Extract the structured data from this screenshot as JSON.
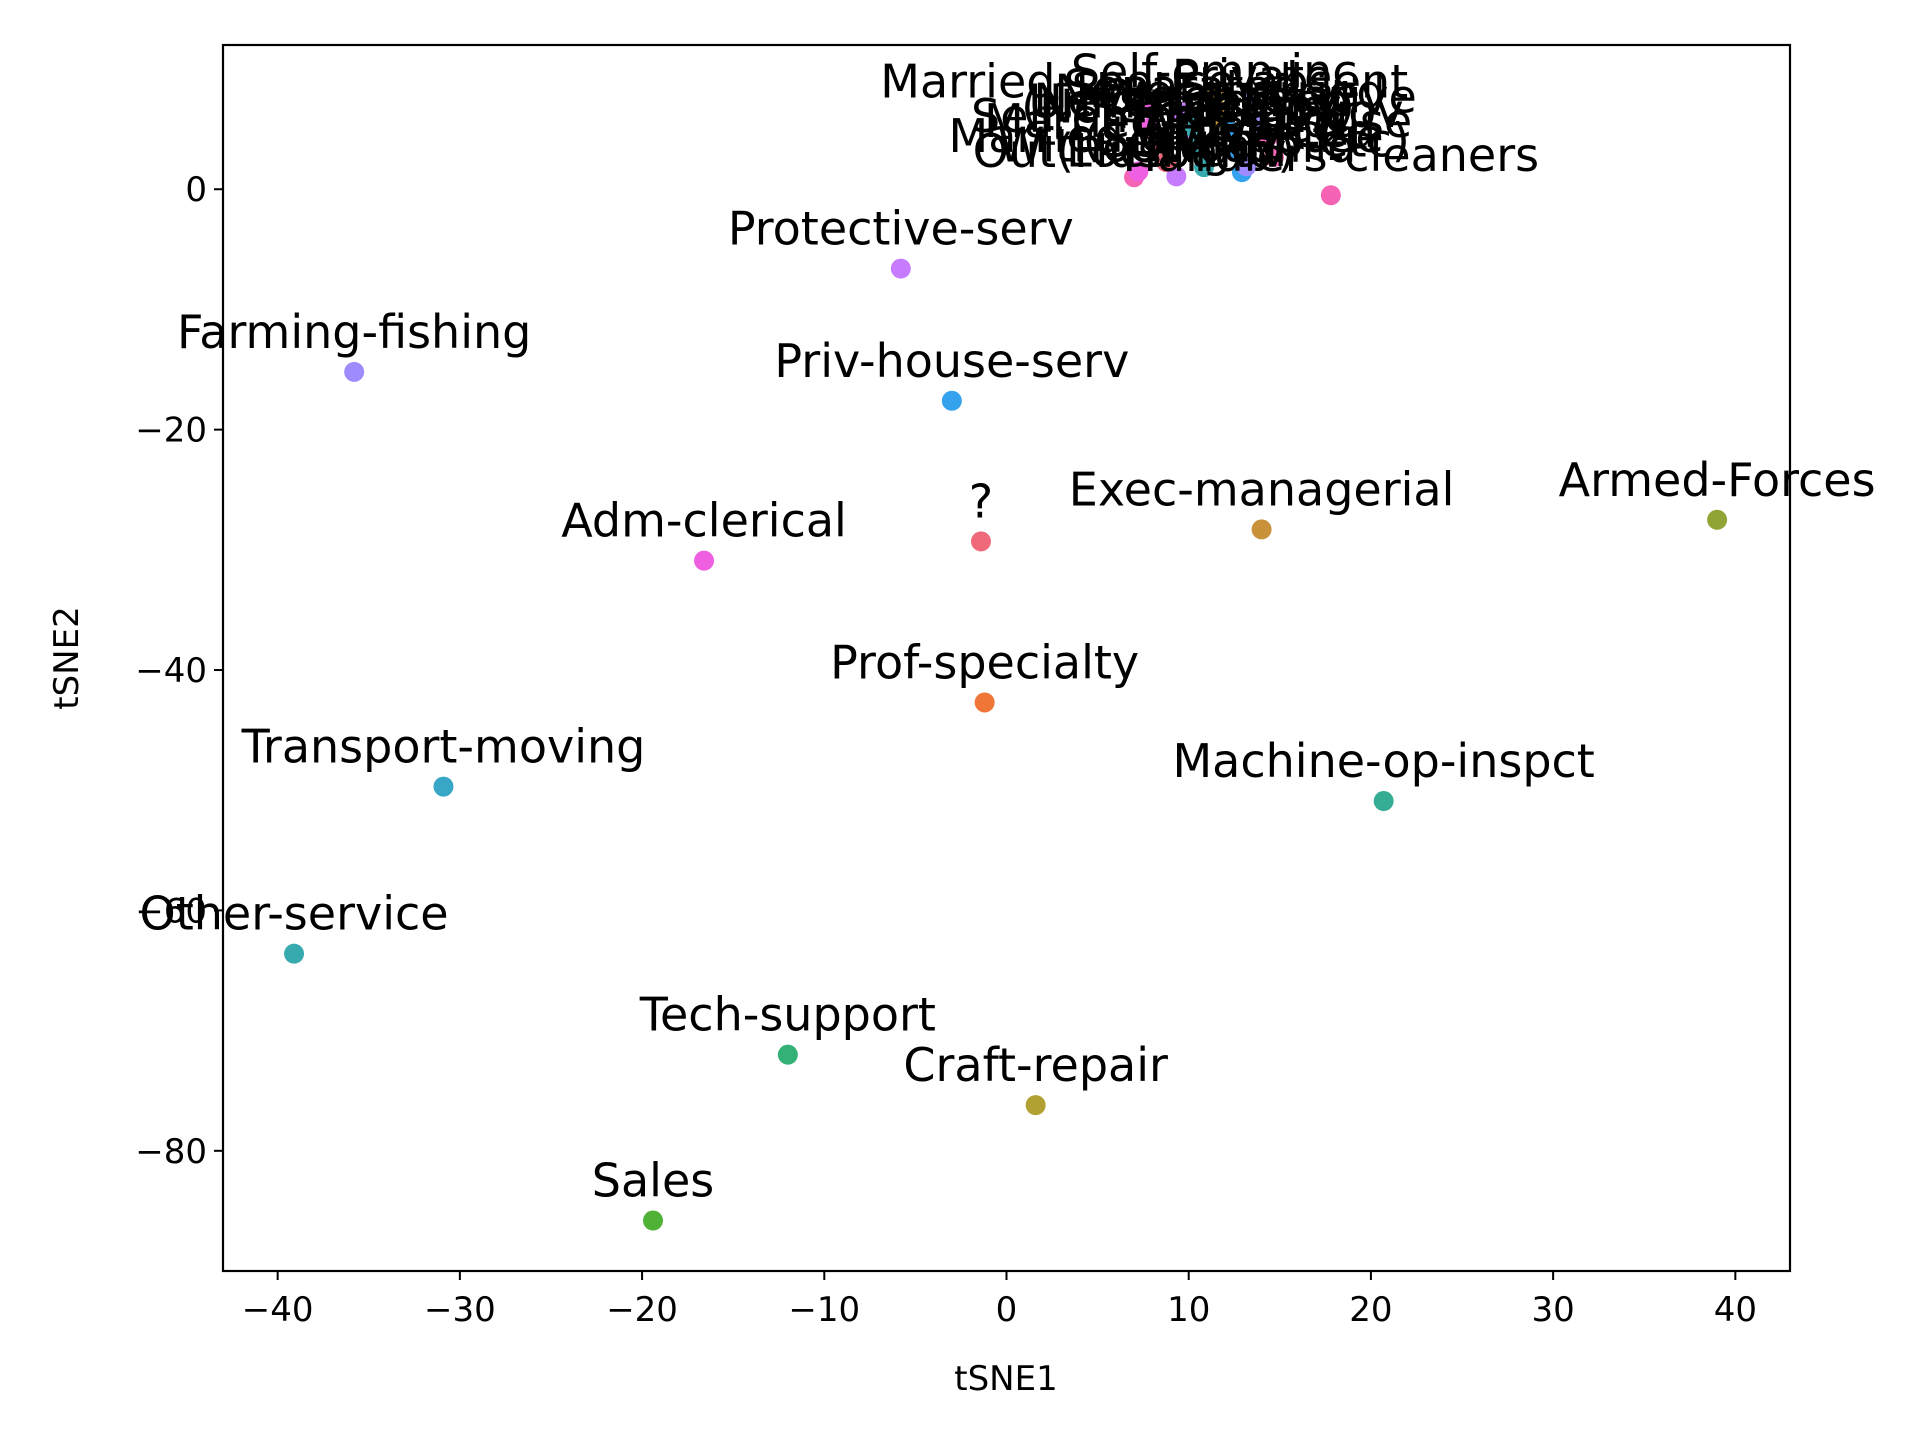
{
  "chart_data": {
    "type": "scatter",
    "title": "",
    "xlabel": "tSNE1",
    "ylabel": "tSNE2",
    "xlim": [
      -43,
      43
    ],
    "ylim": [
      -90,
      12
    ],
    "xticks": [
      -40,
      -30,
      -20,
      -10,
      0,
      10,
      20,
      30,
      40
    ],
    "yticks": [
      -80,
      -60,
      -40,
      -20,
      0
    ],
    "xtick_labels": [
      "−40",
      "−30",
      "−20",
      "−10",
      "0",
      "10",
      "20",
      "30",
      "40"
    ],
    "ytick_labels": [
      "−80",
      "−60",
      "−40",
      "−20",
      "0"
    ],
    "grid": false,
    "legend": "none",
    "points": [
      {
        "label": "Handlers-cleaners",
        "x": 17.8,
        "y": -0.5,
        "color": "#f564b4"
      },
      {
        "label": "Protective-serv",
        "x": -5.8,
        "y": -6.6,
        "color": "#c77cff"
      },
      {
        "label": "Farming-fishing",
        "x": -35.8,
        "y": -15.2,
        "color": "#9e8cff"
      },
      {
        "label": "Priv-house-serv",
        "x": -3.0,
        "y": -17.6,
        "color": "#35a2ee"
      },
      {
        "label": "?",
        "x": -1.4,
        "y": -29.3,
        "color": "#f0697a"
      },
      {
        "label": "Exec-managerial",
        "x": 14.0,
        "y": -28.3,
        "color": "#c9913a"
      },
      {
        "label": "Armed-Forces",
        "x": 39.0,
        "y": -27.5,
        "color": "#8fa434"
      },
      {
        "label": "Adm-clerical",
        "x": -16.6,
        "y": -30.9,
        "color": "#ee5fe2"
      },
      {
        "label": "Prof-specialty",
        "x": -1.2,
        "y": -42.7,
        "color": "#f07638"
      },
      {
        "label": "Transport-moving",
        "x": -30.9,
        "y": -49.7,
        "color": "#37a6c7"
      },
      {
        "label": "Machine-op-inspct",
        "x": 20.7,
        "y": -50.9,
        "color": "#35ad94"
      },
      {
        "label": "Other-service",
        "x": -39.1,
        "y": -63.6,
        "color": "#37aaaf"
      },
      {
        "label": "Tech-support",
        "x": -12.0,
        "y": -72.0,
        "color": "#33b176"
      },
      {
        "label": "Craft-repair",
        "x": 1.6,
        "y": -76.2,
        "color": "#b0a132"
      },
      {
        "label": "Sales",
        "x": -19.4,
        "y": -85.8,
        "color": "#4fb136"
      }
    ],
    "cluster_top": {
      "note_labels": [
        "Out(Husband)",
        "(Not-in-family)",
        "Own-child",
        "Unmarried",
        "Wife",
        "Other-relative",
        "Married-civ-spouse",
        "Never-married",
        "Divorced",
        "Separated",
        "Widowed",
        "Married-spouse-absent",
        "Married-AF-spouse",
        "Private",
        "Self-emp-not-inc",
        "Self-emp-inc",
        "Federal-gov",
        "Local-gov",
        "State-gov",
        "Without-pay",
        "Never-worked",
        "(Self-emp-etc)"
      ],
      "x_range": [
        7,
        15
      ],
      "y_range": [
        1,
        8
      ]
    }
  }
}
